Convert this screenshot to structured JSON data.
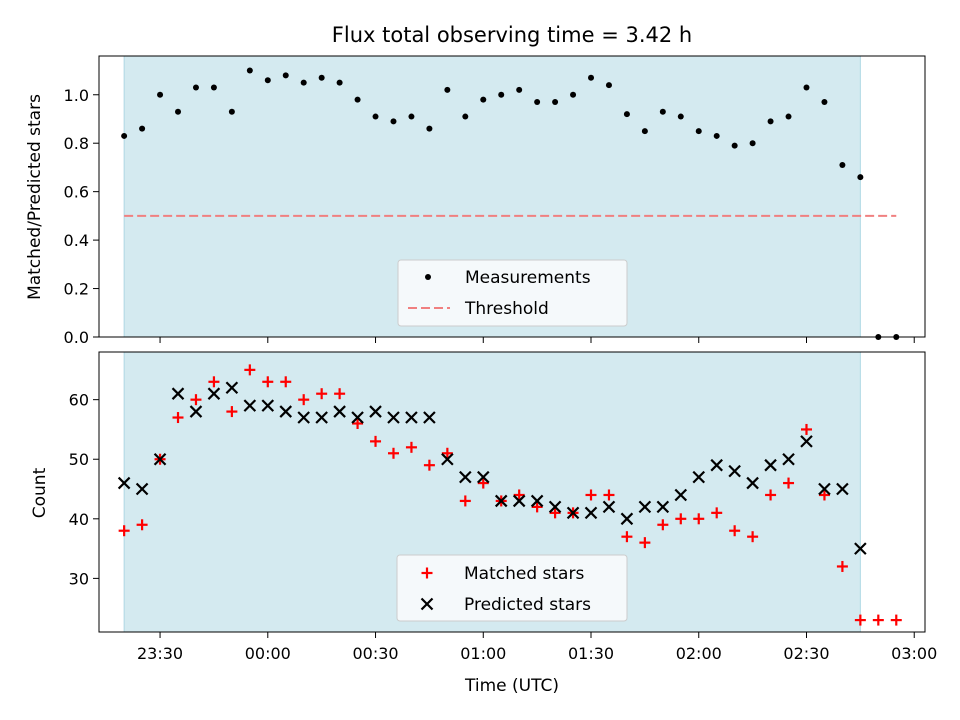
{
  "chart_data": [
    {
      "type": "scatter",
      "title": "Flux total observing time = 3.42 h",
      "ylabel": "Matched/Predicted stars",
      "xlabel": "",
      "xlim": [
        "23:13",
        "03:03"
      ],
      "ylim": [
        0,
        1.16
      ],
      "yticks": [
        0.0,
        0.2,
        0.4,
        0.6,
        0.8,
        1.0
      ],
      "ytick_labels": [
        "0.0",
        "0.2",
        "0.4",
        "0.6",
        "0.8",
        "1.0"
      ],
      "shaded_span": [
        "23:20",
        "02:45"
      ],
      "threshold": {
        "name": "Threshold",
        "value": 0.5,
        "x": [
          "23:20",
          "02:55"
        ],
        "color": "#f08080"
      },
      "legend_position": "lower-center",
      "series": [
        {
          "name": "Measurements",
          "marker": "dot",
          "color": "#000000",
          "x": [
            "23:20",
            "23:25",
            "23:30",
            "23:35",
            "23:40",
            "23:45",
            "23:50",
            "23:55",
            "00:00",
            "00:05",
            "00:10",
            "00:15",
            "00:20",
            "00:25",
            "00:30",
            "00:35",
            "00:40",
            "00:45",
            "00:50",
            "00:55",
            "01:00",
            "01:05",
            "01:10",
            "01:15",
            "01:20",
            "01:25",
            "01:30",
            "01:35",
            "01:40",
            "01:45",
            "01:50",
            "01:55",
            "02:00",
            "02:05",
            "02:10",
            "02:15",
            "02:20",
            "02:25",
            "02:30",
            "02:35",
            "02:40",
            "02:45",
            "02:50",
            "02:55"
          ],
          "y": [
            0.83,
            0.86,
            1.0,
            0.93,
            1.03,
            1.03,
            0.93,
            1.1,
            1.06,
            1.08,
            1.05,
            1.07,
            1.05,
            0.98,
            0.91,
            0.89,
            0.91,
            0.86,
            1.02,
            0.91,
            0.98,
            1.0,
            1.02,
            0.97,
            0.97,
            1.0,
            1.07,
            1.04,
            0.92,
            0.85,
            0.93,
            0.91,
            0.85,
            0.83,
            0.79,
            0.8,
            0.89,
            0.91,
            1.03,
            0.97,
            0.71,
            0.66,
            0.0,
            0.0
          ]
        }
      ]
    },
    {
      "type": "scatter",
      "title": "",
      "ylabel": "Count",
      "xlabel": "Time (UTC)",
      "xlim": [
        "23:13",
        "03:03"
      ],
      "ylim": [
        21,
        68
      ],
      "yticks": [
        30,
        40,
        50,
        60
      ],
      "ytick_labels": [
        "30",
        "40",
        "50",
        "60"
      ],
      "xticks": [
        "23:30",
        "00:00",
        "00:30",
        "01:00",
        "01:30",
        "02:00",
        "02:30",
        "03:00"
      ],
      "shaded_span": [
        "23:20",
        "02:45"
      ],
      "legend_position": "lower-center",
      "series": [
        {
          "name": "Matched stars",
          "marker": "plus",
          "color": "#ff0000",
          "x": [
            "23:20",
            "23:25",
            "23:30",
            "23:35",
            "23:40",
            "23:45",
            "23:50",
            "23:55",
            "00:00",
            "00:05",
            "00:10",
            "00:15",
            "00:20",
            "00:25",
            "00:30",
            "00:35",
            "00:40",
            "00:45",
            "00:50",
            "00:55",
            "01:00",
            "01:05",
            "01:10",
            "01:15",
            "01:20",
            "01:25",
            "01:30",
            "01:35",
            "01:40",
            "01:45",
            "01:50",
            "01:55",
            "02:00",
            "02:05",
            "02:10",
            "02:15",
            "02:20",
            "02:25",
            "02:30",
            "02:35",
            "02:40",
            "02:45",
            "02:50",
            "02:55"
          ],
          "y": [
            38,
            39,
            50,
            57,
            60,
            63,
            58,
            65,
            63,
            63,
            60,
            61,
            61,
            56,
            53,
            51,
            52,
            49,
            51,
            43,
            46,
            43,
            44,
            42,
            41,
            41,
            44,
            44,
            37,
            36,
            39,
            40,
            40,
            41,
            38,
            37,
            44,
            46,
            55,
            44,
            32,
            23,
            23,
            23
          ]
        },
        {
          "name": "Predicted stars",
          "marker": "x",
          "color": "#000000",
          "x": [
            "23:20",
            "23:25",
            "23:30",
            "23:35",
            "23:40",
            "23:45",
            "23:50",
            "23:55",
            "00:00",
            "00:05",
            "00:10",
            "00:15",
            "00:20",
            "00:25",
            "00:30",
            "00:35",
            "00:40",
            "00:45",
            "00:50",
            "00:55",
            "01:00",
            "01:05",
            "01:10",
            "01:15",
            "01:20",
            "01:25",
            "01:30",
            "01:35",
            "01:40",
            "01:45",
            "01:50",
            "01:55",
            "02:00",
            "02:05",
            "02:10",
            "02:15",
            "02:20",
            "02:25",
            "02:30",
            "02:35",
            "02:40",
            "02:45"
          ],
          "y": [
            46,
            45,
            50,
            61,
            58,
            61,
            62,
            59,
            59,
            58,
            57,
            57,
            58,
            57,
            58,
            57,
            57,
            57,
            50,
            47,
            47,
            43,
            43,
            43,
            42,
            41,
            41,
            42,
            40,
            42,
            42,
            44,
            47,
            49,
            48,
            46,
            49,
            50,
            53,
            45,
            45,
            35
          ]
        }
      ]
    }
  ],
  "colors": {
    "shade": "#d4eaf0",
    "shade_edge": "#aed8e4",
    "legend_bg": "#f5f9fb"
  }
}
